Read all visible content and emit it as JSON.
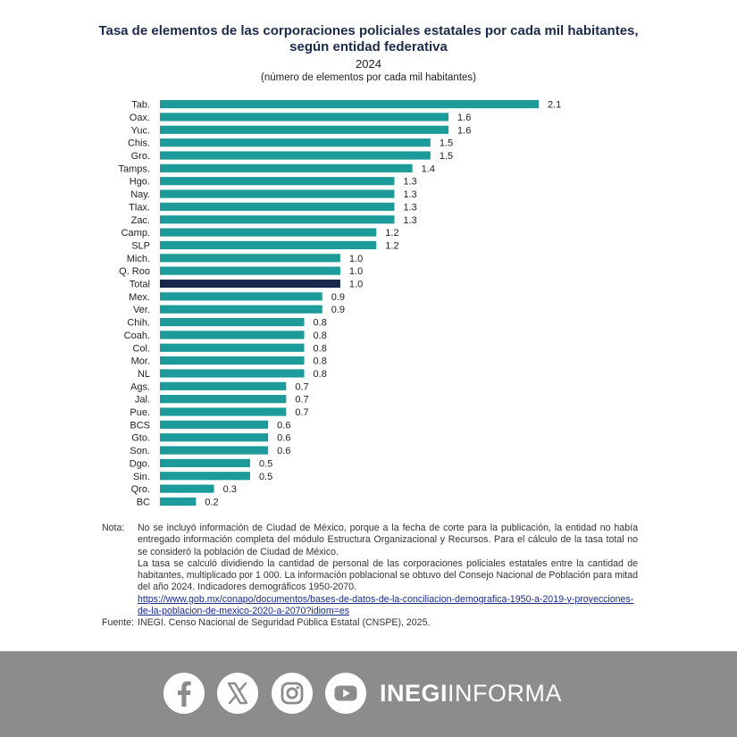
{
  "header": {
    "title_line1": "Tasa de elementos de las corporaciones policiales estatales por cada mil habitantes,",
    "title_line2": "según entidad federativa",
    "year": "2024",
    "unit": "(número de elementos por cada mil habitantes)"
  },
  "chart_data": {
    "type": "bar",
    "orientation": "horizontal",
    "categories": [
      "Tab.",
      "Oax.",
      "Yuc.",
      "Chis.",
      "Gro.",
      "Tamps.",
      "Hgo.",
      "Nay.",
      "Tlax.",
      "Zac.",
      "Camp.",
      "SLP",
      "Mich.",
      "Q. Roo",
      "Total",
      "Mex.",
      "Ver.",
      "Chih.",
      "Coah.",
      "Col.",
      "Mor.",
      "NL",
      "Ags.",
      "Jal.",
      "Pue.",
      "BCS",
      "Gto.",
      "Son.",
      "Dgo.",
      "Sin.",
      "Qro.",
      "BC"
    ],
    "values": [
      2.1,
      1.6,
      1.6,
      1.5,
      1.5,
      1.4,
      1.3,
      1.3,
      1.3,
      1.3,
      1.2,
      1.2,
      1.0,
      1.0,
      1.0,
      0.9,
      0.9,
      0.8,
      0.8,
      0.8,
      0.8,
      0.8,
      0.7,
      0.7,
      0.7,
      0.6,
      0.6,
      0.6,
      0.5,
      0.5,
      0.3,
      0.2
    ],
    "value_labels": [
      "2.1",
      "1.6",
      "1.6",
      "1.5",
      "1.5",
      "1.4",
      "1.3",
      "1.3",
      "1.3",
      "1.3",
      "1.2",
      "1.2",
      "1.0",
      "1.0",
      "1.0",
      "0.9",
      "0.9",
      "0.8",
      "0.8",
      "0.8",
      "0.8",
      "0.8",
      "0.7",
      "0.7",
      "0.7",
      "0.6",
      "0.6",
      "0.6",
      "0.5",
      "0.5",
      "0.3",
      "0.2"
    ],
    "highlight_category": "Total",
    "bar_color": "#1d9a9a",
    "highlight_color": "#17284a",
    "xlim": [
      0,
      2.1
    ],
    "grid": false,
    "legend": false
  },
  "notes": {
    "label": "Nota:",
    "paragraph1": "No se incluyó información de Ciudad de México, porque a la fecha de corte para la publicación, la entidad no había entregado información completa del módulo Estructura Organizacional y Recursos. Para el cálculo de la tasa total no se consideró la población de Ciudad de México.",
    "paragraph2": "La tasa se calculó dividiendo la cantidad de personal de las corporaciones policiales estatales entre la cantidad de habitantes, multiplicado por 1 000. La información poblacional se obtuvo del Consejo Nacional de Población para mitad del año 2024. Indicadores demográficos 1950-2070.",
    "link": "https://www.gob.mx/conapo/documentos/bases-de-datos-de-la-conciliacion-demografica-1950-a-2019-y-proyecciones-de-la-poblacion-de-mexico-2020-a-2070?idiom=es",
    "source_label": "Fuente:",
    "source_org": "INEGI",
    "source_text_a": ". Censo Nacional de Seguridad Pública Estatal (",
    "source_abbr": "CNSPE",
    "source_text_b": "), 2025."
  },
  "footer": {
    "brand_bold": "INEGI",
    "brand_light": "INFORMA",
    "icons": [
      "facebook-icon",
      "x-icon",
      "instagram-icon",
      "youtube-icon"
    ],
    "background": "#8c8c8c"
  }
}
